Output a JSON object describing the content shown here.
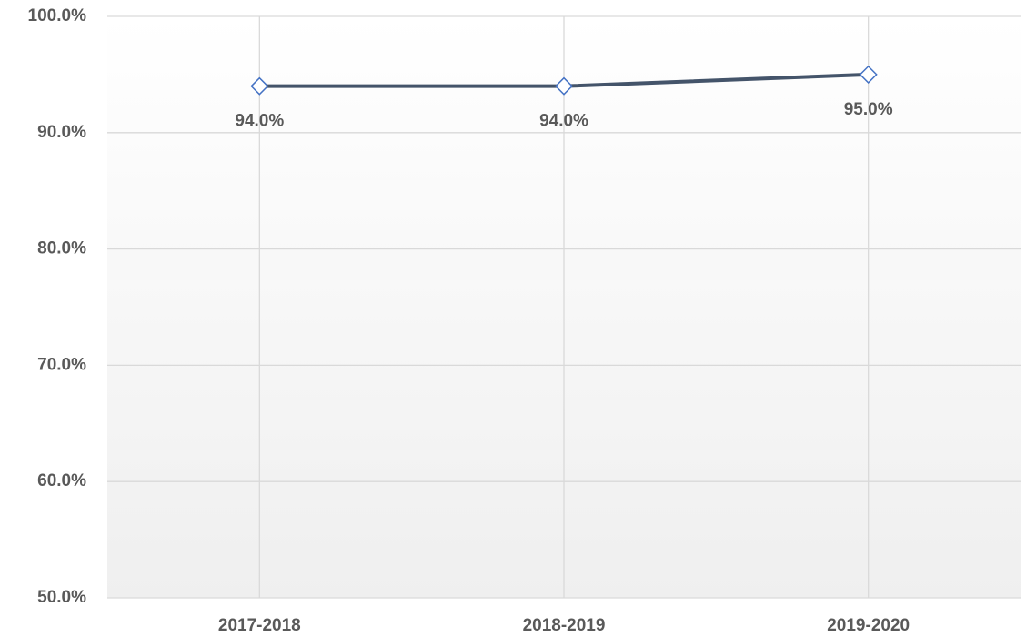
{
  "chart_data": {
    "type": "line",
    "categories": [
      "2017-2018",
      "2018-2019",
      "2019-2020"
    ],
    "series": [
      {
        "name": null,
        "color": "#44546a",
        "marker_color": "#4472c4",
        "values": [
          94,
          94,
          95
        ],
        "value_labels": [
          "94.0%",
          "94.0%",
          "95.0%"
        ]
      }
    ],
    "ylim": [
      50,
      100
    ],
    "yticks": [
      {
        "value": 50,
        "label": "50.0%"
      },
      {
        "value": 60,
        "label": "60.0%"
      },
      {
        "value": 70,
        "label": "70.0%"
      },
      {
        "value": 80,
        "label": "80.0%"
      },
      {
        "value": 90,
        "label": "90.0%"
      },
      {
        "value": 100,
        "label": "100.0%"
      }
    ],
    "grid": true
  }
}
